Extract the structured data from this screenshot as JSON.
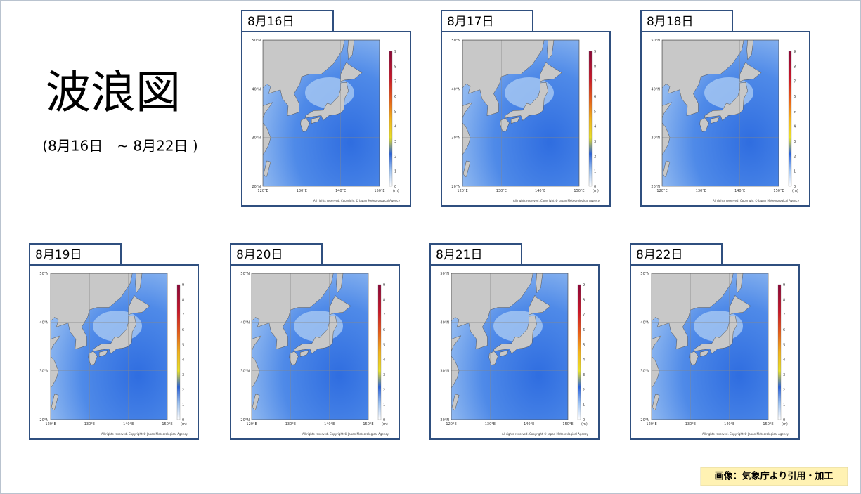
{
  "header": {
    "title": "波浪図",
    "subtitle": "(8月16日　~ 8月22日 )"
  },
  "maps": [
    {
      "date": "8月16日"
    },
    {
      "date": "8月17日"
    },
    {
      "date": "8月18日"
    },
    {
      "date": "8月19日"
    },
    {
      "date": "8月20日"
    },
    {
      "date": "8月21日"
    },
    {
      "date": "8月22日"
    }
  ],
  "map_axes": {
    "lat_labels": [
      "50°N",
      "40°N",
      "30°N",
      "20°N"
    ],
    "lon_labels": [
      "120°E",
      "130°E",
      "140°E",
      "150°E"
    ],
    "scale_labels": [
      "9",
      "8",
      "7",
      "6",
      "5",
      "4",
      "3",
      "2",
      "1",
      "0"
    ],
    "unit": "(m)",
    "copyright": "All rights reserved. Copyright © Japan Meteorological Agency"
  },
  "credit": "画像：気象庁より引用・加工"
}
